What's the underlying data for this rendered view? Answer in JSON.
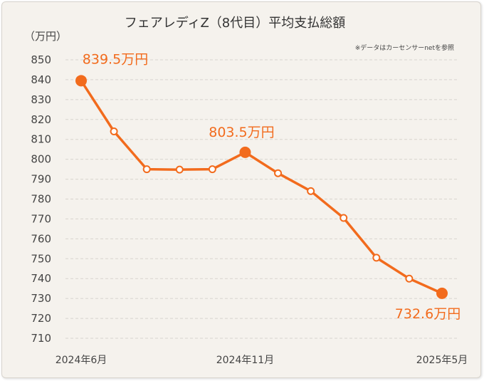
{
  "chart_data": {
    "type": "line",
    "title": "フェアレディZ（8代目）平均支払総額",
    "ylabel": "（万円）",
    "note": "※データはカーセンサーnetを参照",
    "ylim": [
      710,
      850
    ],
    "yticks": [
      710,
      720,
      730,
      740,
      750,
      760,
      770,
      780,
      790,
      800,
      810,
      820,
      830,
      840,
      850
    ],
    "grid": true,
    "x_tick_labels": [
      {
        "index": 0,
        "label": "2024年6月"
      },
      {
        "index": 5,
        "label": "2024年11月"
      },
      {
        "index": 11,
        "label": "2025年5月"
      }
    ],
    "series": [
      {
        "values": [
          839.5,
          814,
          795,
          794.8,
          795,
          803.5,
          793,
          784,
          770.5,
          750.5,
          740,
          732.6
        ],
        "color": "#f26b1d"
      }
    ],
    "highlights": [
      {
        "index": 0,
        "label": "839.5万円"
      },
      {
        "index": 5,
        "label": "803.5万円"
      },
      {
        "index": 11,
        "label": "732.6万円"
      }
    ]
  }
}
